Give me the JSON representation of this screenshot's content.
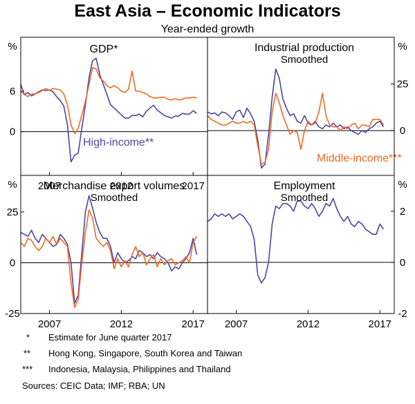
{
  "header": {
    "title": "East Asia – Economic Indicators",
    "subtitle": "Year-ended growth"
  },
  "chart_data": [
    {
      "type": "line",
      "id": "gdp",
      "title": "GDP*",
      "subtitle": "",
      "y_unit": "%",
      "y_axis_side": "left",
      "ylim": [
        -6.5,
        14
      ],
      "yticks": [
        {
          "v": 6,
          "label": "6"
        },
        {
          "v": 0,
          "label": "0"
        }
      ],
      "xlim": [
        2005.0,
        2018.0
      ],
      "xticks": [
        {
          "v": 2007,
          "label": "2007"
        },
        {
          "v": 2012,
          "label": "2012"
        },
        {
          "v": 2017,
          "label": "2017"
        }
      ],
      "annotations": [
        {
          "text": "High-income**",
          "color": "#4b44a6"
        }
      ],
      "series": [
        {
          "name": "High-income**",
          "color": "#4b44a6",
          "x": [
            2005.0,
            2005.25,
            2005.5,
            2005.75,
            2006.0,
            2006.25,
            2006.5,
            2006.75,
            2007.0,
            2007.25,
            2007.5,
            2007.75,
            2008.0,
            2008.25,
            2008.5,
            2008.75,
            2009.0,
            2009.25,
            2009.5,
            2009.75,
            2010.0,
            2010.25,
            2010.5,
            2010.75,
            2011.0,
            2011.25,
            2011.5,
            2011.75,
            2012.0,
            2012.25,
            2012.5,
            2012.75,
            2013.0,
            2013.25,
            2013.5,
            2013.75,
            2014.0,
            2014.25,
            2014.5,
            2014.75,
            2015.0,
            2015.25,
            2015.5,
            2015.75,
            2016.0,
            2016.25,
            2016.5,
            2016.75,
            2017.0,
            2017.25
          ],
          "y": [
            7.0,
            5.5,
            5.8,
            5.3,
            5.6,
            5.9,
            6.2,
            6.1,
            6.2,
            5.9,
            5.2,
            4.6,
            3.8,
            1.0,
            -4.5,
            -3.5,
            -3.2,
            0.5,
            4.0,
            8.0,
            10.5,
            10.9,
            8.5,
            7.0,
            5.5,
            4.0,
            3.5,
            3.0,
            2.5,
            2.0,
            2.0,
            2.4,
            2.4,
            2.6,
            2.2,
            3.0,
            3.5,
            3.9,
            3.2,
            2.8,
            2.4,
            2.2,
            2.0,
            2.3,
            2.3,
            2.7,
            2.6,
            2.6,
            3.1,
            2.7
          ]
        },
        {
          "name": "Middle-income***",
          "color": "#f26722",
          "x": [
            2005.0,
            2005.25,
            2005.5,
            2005.75,
            2006.0,
            2006.25,
            2006.5,
            2006.75,
            2007.0,
            2007.25,
            2007.5,
            2007.75,
            2008.0,
            2008.25,
            2008.5,
            2008.75,
            2009.0,
            2009.25,
            2009.5,
            2009.75,
            2010.0,
            2010.25,
            2010.5,
            2010.75,
            2011.0,
            2011.25,
            2011.5,
            2011.75,
            2012.0,
            2012.25,
            2012.5,
            2012.75,
            2013.0,
            2013.25,
            2013.5,
            2013.75,
            2014.0,
            2014.25,
            2014.5,
            2014.75,
            2015.0,
            2015.25,
            2015.5,
            2015.75,
            2016.0,
            2016.25,
            2016.5,
            2016.75,
            2017.0,
            2017.25
          ],
          "y": [
            6.0,
            5.5,
            5.2,
            5.6,
            5.6,
            5.8,
            6.1,
            6.4,
            6.1,
            6.4,
            6.3,
            6.2,
            5.6,
            4.0,
            1.0,
            -0.3,
            0.5,
            2.5,
            4.5,
            7.0,
            9.5,
            9.3,
            8.0,
            7.5,
            6.8,
            6.5,
            6.8,
            6.5,
            6.0,
            5.8,
            6.3,
            9.0,
            6.0,
            6.0,
            5.8,
            5.6,
            5.2,
            5.0,
            5.0,
            5.1,
            5.1,
            4.8,
            4.7,
            4.9,
            4.7,
            4.8,
            5.0,
            5.0,
            5.1,
            5.0
          ]
        }
      ]
    },
    {
      "type": "line",
      "id": "industrial-production",
      "title": "Industrial production",
      "subtitle": "Smoothed",
      "y_unit": "%",
      "y_axis_side": "right",
      "ylim": [
        -24,
        50
      ],
      "yticks": [
        {
          "v": 25,
          "label": "25"
        },
        {
          "v": 0,
          "label": "0"
        }
      ],
      "xlim": [
        2005.0,
        2018.0
      ],
      "xticks": [],
      "annotations": [
        {
          "text": "Middle-income***",
          "color": "#f26722"
        }
      ],
      "series": [
        {
          "name": "High-income**",
          "color": "#4b44a6",
          "x": [
            2005.0,
            2005.25,
            2005.5,
            2005.75,
            2006.0,
            2006.25,
            2006.5,
            2006.75,
            2007.0,
            2007.25,
            2007.5,
            2007.75,
            2008.0,
            2008.25,
            2008.5,
            2008.75,
            2009.0,
            2009.25,
            2009.5,
            2009.75,
            2010.0,
            2010.25,
            2010.5,
            2010.75,
            2011.0,
            2011.25,
            2011.5,
            2011.75,
            2012.0,
            2012.25,
            2012.5,
            2012.75,
            2013.0,
            2013.25,
            2013.5,
            2013.75,
            2014.0,
            2014.25,
            2014.5,
            2014.75,
            2015.0,
            2015.25,
            2015.5,
            2015.75,
            2016.0,
            2016.25,
            2016.5,
            2016.75,
            2017.0,
            2017.25
          ],
          "y": [
            10.0,
            9.0,
            9.5,
            8.0,
            10.0,
            9.5,
            8.0,
            6.0,
            10.0,
            11.0,
            7.0,
            12.0,
            9.0,
            5.0,
            -5.0,
            -20.0,
            -18.0,
            -2.0,
            18.0,
            33.0,
            28.0,
            17.0,
            12.0,
            8.0,
            9.0,
            5.0,
            4.0,
            8.0,
            4.0,
            3.0,
            5.0,
            2.0,
            1.0,
            3.0,
            2.0,
            4.0,
            2.0,
            3.0,
            1.0,
            2.0,
            0.0,
            -1.0,
            -2.0,
            0.0,
            -1.0,
            1.0,
            2.0,
            4.0,
            5.0,
            2.0
          ]
        },
        {
          "name": "Middle-income***",
          "color": "#f26722",
          "x": [
            2005.0,
            2005.25,
            2005.5,
            2005.75,
            2006.0,
            2006.25,
            2006.5,
            2006.75,
            2007.0,
            2007.25,
            2007.5,
            2007.75,
            2008.0,
            2008.25,
            2008.5,
            2008.75,
            2009.0,
            2009.25,
            2009.5,
            2009.75,
            2010.0,
            2010.25,
            2010.5,
            2010.75,
            2011.0,
            2011.25,
            2011.5,
            2011.75,
            2012.0,
            2012.25,
            2012.5,
            2012.75,
            2013.0,
            2013.25,
            2013.5,
            2013.75,
            2014.0,
            2014.25,
            2014.5,
            2014.75,
            2015.0,
            2015.25,
            2015.5,
            2015.75,
            2016.0,
            2016.25,
            2016.5,
            2016.75,
            2017.0,
            2017.25
          ],
          "y": [
            8.0,
            6.0,
            5.0,
            4.0,
            3.0,
            3.0,
            4.0,
            5.0,
            4.0,
            4.0,
            5.0,
            4.0,
            5.0,
            3.0,
            -8.0,
            -18.0,
            -17.0,
            -10.0,
            10.0,
            20.0,
            15.0,
            8.0,
            3.0,
            -2.0,
            0.0,
            -1.0,
            -10.0,
            0.0,
            5.0,
            3.0,
            4.0,
            10.0,
            20.0,
            8.0,
            3.0,
            2.0,
            2.0,
            0.0,
            2.0,
            1.0,
            3.0,
            4.0,
            1.0,
            3.0,
            3.0,
            2.0,
            6.0,
            6.0,
            6.0,
            3.0
          ]
        }
      ]
    },
    {
      "type": "line",
      "id": "merchandise-export-volumes",
      "title": "Merchandise export volumes",
      "subtitle": "Smoothed",
      "y_unit": "%",
      "y_axis_side": "left",
      "ylim": [
        -25,
        43
      ],
      "yticks": [
        {
          "v": 25,
          "label": "25"
        },
        {
          "v": 0,
          "label": "0"
        },
        {
          "v": -25,
          "label": "-25"
        }
      ],
      "xlim": [
        2005.0,
        2018.0
      ],
      "xticks": [
        {
          "v": 2007,
          "label": "2007"
        },
        {
          "v": 2012,
          "label": "2012"
        },
        {
          "v": 2017,
          "label": "2017"
        }
      ],
      "annotations": [],
      "series": [
        {
          "name": "High-income**",
          "color": "#4b44a6",
          "x": [
            2005.0,
            2005.25,
            2005.5,
            2005.75,
            2006.0,
            2006.25,
            2006.5,
            2006.75,
            2007.0,
            2007.25,
            2007.5,
            2007.75,
            2008.0,
            2008.25,
            2008.5,
            2008.75,
            2009.0,
            2009.25,
            2009.5,
            2009.75,
            2010.0,
            2010.25,
            2010.5,
            2010.75,
            2011.0,
            2011.25,
            2011.5,
            2011.75,
            2012.0,
            2012.25,
            2012.5,
            2012.75,
            2013.0,
            2013.25,
            2013.5,
            2013.75,
            2014.0,
            2014.25,
            2014.5,
            2014.75,
            2015.0,
            2015.25,
            2015.5,
            2015.75,
            2016.0,
            2016.25,
            2016.5,
            2016.75,
            2017.0,
            2017.25
          ],
          "y": [
            15.0,
            14.0,
            13.0,
            16.0,
            12.0,
            10.0,
            14.0,
            12.0,
            10.0,
            8.0,
            9.0,
            14.0,
            12.0,
            9.0,
            0.0,
            -20.0,
            -16.0,
            5.0,
            25.0,
            33.0,
            27.0,
            20.0,
            15.0,
            12.0,
            12.0,
            8.0,
            0.0,
            5.0,
            2.0,
            0.0,
            1.0,
            3.0,
            2.0,
            6.0,
            5.0,
            3.0,
            4.0,
            2.0,
            5.0,
            3.0,
            2.0,
            0.0,
            -4.0,
            -2.0,
            -3.0,
            0.0,
            2.0,
            5.0,
            12.0,
            4.0
          ]
        },
        {
          "name": "Middle-income***",
          "color": "#f26722",
          "x": [
            2005.0,
            2005.25,
            2005.5,
            2005.75,
            2006.0,
            2006.25,
            2006.5,
            2006.75,
            2007.0,
            2007.25,
            2007.5,
            2007.75,
            2008.0,
            2008.25,
            2008.5,
            2008.75,
            2009.0,
            2009.25,
            2009.5,
            2009.75,
            2010.0,
            2010.25,
            2010.5,
            2010.75,
            2011.0,
            2011.25,
            2011.5,
            2011.75,
            2012.0,
            2012.25,
            2012.5,
            2012.75,
            2013.0,
            2013.25,
            2013.5,
            2013.75,
            2014.0,
            2014.25,
            2014.5,
            2014.75,
            2015.0,
            2015.25,
            2015.5,
            2015.75,
            2016.0,
            2016.25,
            2016.5,
            2016.75,
            2017.0,
            2017.25
          ],
          "y": [
            10.0,
            8.0,
            12.0,
            11.0,
            8.0,
            6.0,
            8.0,
            12.0,
            10.0,
            13.0,
            9.0,
            12.0,
            10.0,
            8.0,
            -10.0,
            -22.0,
            -18.0,
            0.0,
            15.0,
            26.0,
            22.0,
            12.0,
            10.0,
            8.0,
            10.0,
            6.0,
            -3.0,
            2.0,
            -2.0,
            1.0,
            -2.0,
            4.0,
            8.0,
            3.0,
            5.0,
            -1.0,
            2.0,
            4.0,
            -2.0,
            2.0,
            -1.0,
            1.0,
            2.0,
            -1.0,
            0.0,
            1.0,
            3.0,
            0.0,
            10.0,
            13.0
          ]
        }
      ]
    },
    {
      "type": "line",
      "id": "employment",
      "title": "Employment",
      "subtitle": "Smoothed",
      "y_unit": "%",
      "y_axis_side": "right",
      "ylim": [
        -2.0,
        3.4
      ],
      "yticks": [
        {
          "v": 2,
          "label": "2"
        },
        {
          "v": 0,
          "label": "0"
        },
        {
          "v": -2,
          "label": "-2"
        }
      ],
      "xlim": [
        2005.0,
        2018.0
      ],
      "xticks": [
        {
          "v": 2007,
          "label": "2007"
        },
        {
          "v": 2012,
          "label": "2012"
        },
        {
          "v": 2017,
          "label": "2017"
        }
      ],
      "annotations": [],
      "series": [
        {
          "name": "High-income**",
          "color": "#4b44a6",
          "x": [
            2005.0,
            2005.25,
            2005.5,
            2005.75,
            2006.0,
            2006.25,
            2006.5,
            2006.75,
            2007.0,
            2007.25,
            2007.5,
            2007.75,
            2008.0,
            2008.25,
            2008.5,
            2008.75,
            2009.0,
            2009.25,
            2009.5,
            2009.75,
            2010.0,
            2010.25,
            2010.5,
            2010.75,
            2011.0,
            2011.25,
            2011.5,
            2011.75,
            2012.0,
            2012.25,
            2012.5,
            2012.75,
            2013.0,
            2013.25,
            2013.5,
            2013.75,
            2014.0,
            2014.25,
            2014.5,
            2014.75,
            2015.0,
            2015.25,
            2015.5,
            2015.75,
            2016.0,
            2016.25,
            2016.5,
            2016.75,
            2017.0,
            2017.25
          ],
          "y": [
            1.6,
            1.7,
            1.9,
            1.8,
            1.9,
            1.8,
            1.9,
            1.7,
            1.8,
            1.9,
            1.8,
            1.6,
            1.4,
            0.9,
            -0.5,
            -0.8,
            -0.6,
            0.0,
            1.5,
            2.2,
            2.1,
            2.3,
            2.3,
            2.2,
            2.0,
            2.4,
            2.4,
            2.2,
            2.1,
            2.3,
            2.1,
            1.8,
            2.0,
            2.3,
            2.2,
            2.5,
            2.1,
            1.8,
            1.6,
            1.8,
            1.5,
            1.4,
            1.6,
            1.5,
            1.3,
            1.2,
            1.1,
            1.1,
            1.5,
            1.3
          ]
        }
      ]
    }
  ],
  "footnotes": [
    {
      "marker": "*",
      "text": "Estimate for June quarter 2017"
    },
    {
      "marker": "**",
      "text": "Hong Kong, Singapore, South Korea and Taiwan"
    },
    {
      "marker": "***",
      "text": "Indonesia, Malaysia, Philippines and Thailand"
    }
  ],
  "sources": "Sources: CEIC Data; IMF; RBA; UN"
}
